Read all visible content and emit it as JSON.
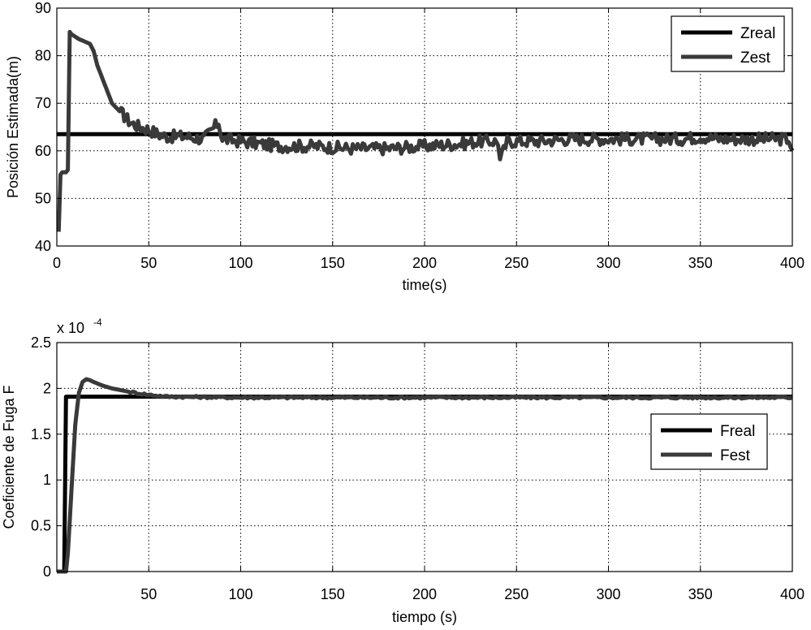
{
  "chart_data": [
    {
      "type": "line",
      "xlabel": "time(s)",
      "ylabel": "Posición Estimada(m)",
      "xlim": [
        0,
        400
      ],
      "ylim": [
        40,
        90
      ],
      "xticks": [
        0,
        50,
        100,
        150,
        200,
        250,
        300,
        350,
        400
      ],
      "yticks": [
        40,
        50,
        60,
        70,
        80,
        90
      ],
      "grid": true,
      "legend_position": "top-right",
      "series": [
        {
          "name": "Zreal",
          "color": "#000000",
          "x": [
            0,
            400
          ],
          "y": [
            63.5,
            63.5
          ]
        },
        {
          "name": "Zest",
          "color": "#3a3a3a",
          "x": [
            1,
            2,
            3,
            5,
            6,
            7,
            8,
            10,
            12,
            15,
            18,
            20,
            22,
            25,
            28,
            30,
            35,
            40,
            45,
            50,
            55,
            60,
            70,
            80,
            88,
            90,
            100,
            110,
            120,
            140,
            160,
            180,
            200,
            220,
            230,
            240,
            241,
            245,
            260,
            280,
            300,
            320,
            340,
            350,
            360,
            380,
            398,
            400
          ],
          "y": [
            43,
            55,
            55.5,
            55.5,
            56,
            85,
            84.5,
            84,
            83.5,
            83,
            82.5,
            81,
            78,
            75,
            72,
            70,
            68,
            66,
            65,
            64.5,
            63.5,
            63,
            63,
            62.5,
            66,
            62.5,
            62,
            61.5,
            61,
            61,
            60.5,
            60.5,
            61,
            61.5,
            62,
            62,
            58,
            62,
            62,
            62.5,
            62.5,
            62.5,
            62.5,
            63,
            62.5,
            62.5,
            62.5,
            60
          ]
        }
      ]
    },
    {
      "type": "line",
      "xlabel": "tiempo (s)",
      "ylabel": "Coeficiente de Fuga F",
      "scale_label": "x 10",
      "scale_exponent": "-4",
      "xlim": [
        0,
        400
      ],
      "ylim": [
        0,
        2.5
      ],
      "xticks": [
        50,
        100,
        150,
        200,
        250,
        300,
        350,
        400
      ],
      "yticks": [
        0,
        0.5,
        1,
        1.5,
        2,
        2.5
      ],
      "ytick_labels": [
        "0",
        "0.5",
        "1",
        "1.5",
        "2",
        "2.5"
      ],
      "grid": true,
      "legend_position": "center-right",
      "series": [
        {
          "name": "Freal",
          "color": "#000000",
          "x": [
            0,
            4,
            5,
            10,
            400
          ],
          "y": [
            0,
            0,
            1.91,
            1.91,
            1.91
          ]
        },
        {
          "name": "Fest",
          "color": "#3a3a3a",
          "x": [
            0,
            5,
            6,
            8,
            10,
            12,
            14,
            16,
            18,
            20,
            25,
            30,
            40,
            50,
            60,
            100,
            200,
            300,
            400
          ],
          "y": [
            0,
            0,
            0.2,
            0.9,
            1.6,
            1.95,
            2.07,
            2.1,
            2.09,
            2.07,
            2.03,
            2.0,
            1.96,
            1.93,
            1.91,
            1.9,
            1.9,
            1.9,
            1.9
          ]
        }
      ]
    }
  ]
}
